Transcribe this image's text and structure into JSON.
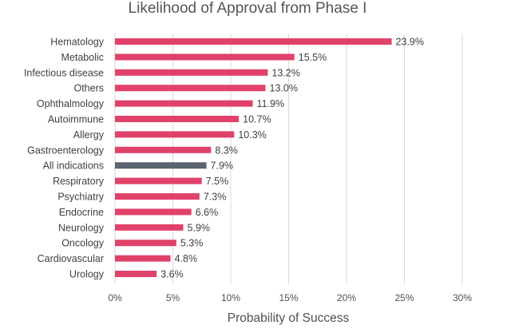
{
  "chart_data": {
    "type": "bar",
    "orientation": "horizontal",
    "title": "Likelihood of Approval from Phase I",
    "xlabel": "Probability of Success",
    "ylabel": "",
    "xlim": [
      0,
      30
    ],
    "ticks": [
      "0%",
      "5%",
      "10%",
      "15%",
      "20%",
      "25%",
      "30%"
    ],
    "tick_values": [
      0,
      5,
      10,
      15,
      20,
      25,
      30
    ],
    "grid": true,
    "colors": {
      "default": "#e0426a",
      "highlight": "#5b6470"
    },
    "categories": [
      "Hematology",
      "Metabolic",
      "Infectious disease",
      "Others",
      "Ophthalmology",
      "Autoimmune",
      "Allergy",
      "Gastroenterology",
      "All indications",
      "Respiratory",
      "Psychiatry",
      "Endocrine",
      "Neurology",
      "Oncology",
      "Cardiovascular",
      "Urology"
    ],
    "values": [
      23.9,
      15.5,
      13.2,
      13.0,
      11.9,
      10.7,
      10.3,
      8.3,
      7.9,
      7.5,
      7.3,
      6.6,
      5.9,
      5.3,
      4.8,
      3.6
    ],
    "value_labels": [
      "23.9%",
      "15.5%",
      "13.2%",
      "13.0%",
      "11.9%",
      "10.7%",
      "10.3%",
      "8.3%",
      "7.9%",
      "7.5%",
      "7.3%",
      "6.6%",
      "5.9%",
      "5.3%",
      "4.8%",
      "3.6%"
    ],
    "highlight": [
      "All indications"
    ]
  }
}
